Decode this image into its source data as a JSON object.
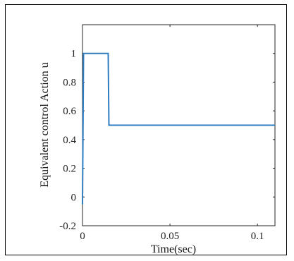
{
  "chart_data": {
    "type": "line",
    "title": "",
    "xlabel": "Time(sec)",
    "ylabel": "Equivalent control Action u",
    "xlim": [
      0,
      0.11
    ],
    "ylim": [
      -0.2,
      1.2
    ],
    "xticks": [
      0,
      0.05,
      0.1
    ],
    "xtick_labels": [
      "0",
      "0.05",
      "0.1"
    ],
    "yticks": [
      -0.2,
      0,
      0.2,
      0.4,
      0.6,
      0.8,
      1
    ],
    "ytick_labels": [
      "-0.2",
      "0",
      "0.2",
      "0.4",
      "0.6",
      "0.8",
      "1"
    ],
    "grid": false,
    "series": [
      {
        "color": "#2e7dc0",
        "x": [
          0,
          0.0006,
          0.0147,
          0.0151,
          0.11
        ],
        "y": [
          -0.05,
          1,
          1,
          0.5,
          0.5
        ]
      }
    ]
  }
}
